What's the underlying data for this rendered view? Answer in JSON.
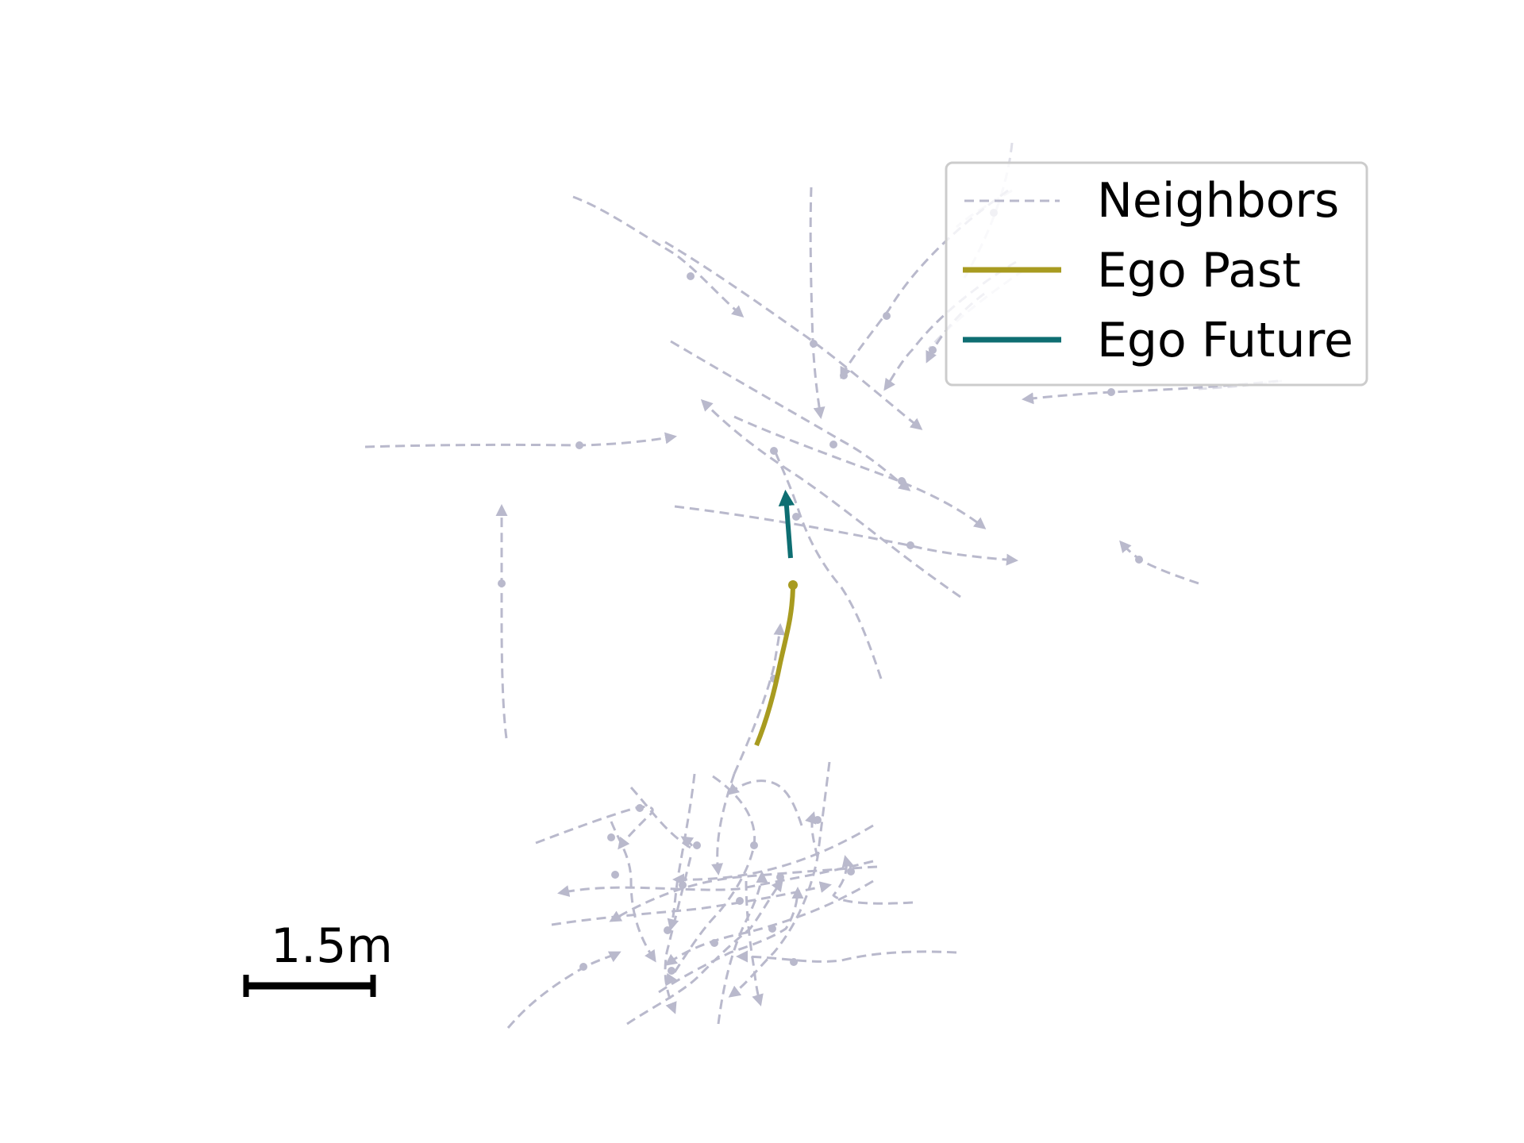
{
  "legend": {
    "neighbors_label": "Neighbors",
    "ego_past_label": "Ego Past",
    "ego_future_label": "Ego Future"
  },
  "scale_bar": {
    "label": "1.5m"
  },
  "colors": {
    "neighbor": "#b9b9cc",
    "ego_past": "#a89b20",
    "ego_future": "#0e6e72",
    "scale": "#000000",
    "legend_border": "#cccccc"
  }
}
